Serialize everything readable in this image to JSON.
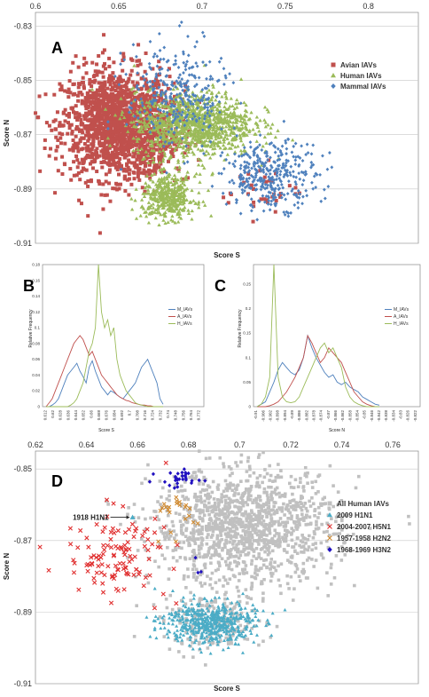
{
  "colors": {
    "avian": "#c0504d",
    "human": "#9bbb59",
    "mammal": "#4f81bd",
    "all_human": "#c0c0c0",
    "h1n1_2009": "#4bacc6",
    "h5n1": "#e03030",
    "h2n2": "#d08a30",
    "h3n2": "#2010c0"
  },
  "chart_data": [
    {
      "panel": "A",
      "type": "scatter",
      "xlabel": "Score S",
      "ylabel": "Score N",
      "xlim": [
        0.6,
        0.83
      ],
      "ylim": [
        -0.91,
        -0.825
      ],
      "xticks": [
        "0.6",
        "0.65",
        "0.7",
        "0.75",
        "0.8"
      ],
      "yticks": [
        "-0.83",
        "-0.85",
        "-0.87",
        "-0.89",
        "-0.91"
      ],
      "legend_position": "top-right",
      "grid": "horizontal",
      "series": [
        {
          "name": "Avian IAVs",
          "marker": "square",
          "color_key": "avian",
          "clusters": [
            {
              "cx": 0.648,
              "cy": -0.866,
              "sx": 0.016,
              "sy": 0.01,
              "n": 1400
            },
            {
              "cx": 0.67,
              "cy": -0.87,
              "sx": 0.01,
              "sy": 0.009,
              "n": 250
            },
            {
              "cx": 0.735,
              "cy": -0.89,
              "sx": 0.012,
              "sy": 0.005,
              "n": 35
            }
          ]
        },
        {
          "name": "Human IAVs",
          "marker": "triangle",
          "color_key": "human",
          "clusters": [
            {
              "cx": 0.695,
              "cy": -0.866,
              "sx": 0.018,
              "sy": 0.006,
              "n": 1100
            },
            {
              "cx": 0.68,
              "cy": -0.893,
              "sx": 0.008,
              "sy": 0.004,
              "n": 400
            }
          ]
        },
        {
          "name": "Mammal IAVs",
          "marker": "diamond",
          "color_key": "mammal",
          "clusters": [
            {
              "cx": 0.685,
              "cy": -0.856,
              "sx": 0.015,
              "sy": 0.01,
              "n": 300
            },
            {
              "cx": 0.742,
              "cy": -0.885,
              "sx": 0.014,
              "sy": 0.006,
              "n": 350
            }
          ]
        }
      ]
    },
    {
      "panel": "B",
      "type": "line",
      "ylabel": "Relative Frequency",
      "xlabel": "Score S",
      "ylim": [
        0,
        0.18
      ],
      "yticks": [
        "0",
        "0.02",
        "0.04",
        "0.06",
        "0.08",
        "0.1",
        "0.12",
        "0.14",
        "0.16",
        "0.18"
      ],
      "xticks": [
        "0.612",
        "0.62",
        "0.628",
        "0.636",
        "0.644",
        "0.652",
        "0.66",
        "0.668",
        "0.676",
        "0.684",
        "0.692",
        "0.7",
        "0.708",
        "0.716",
        "0.724",
        "0.732",
        "0.74",
        "0.748",
        "0.756",
        "0.764",
        "0.772"
      ],
      "legend_position": "right",
      "series": [
        {
          "name": "M_IAVs",
          "color_key": "mammal",
          "values": [
            0,
            0,
            0.002,
            0.005,
            0.01,
            0.02,
            0.03,
            0.04,
            0.045,
            0.05,
            0.055,
            0.045,
            0.038,
            0.03,
            0.05,
            0.058,
            0.045,
            0.035,
            0.025,
            0.02,
            0.015,
            0.02,
            0.018,
            0.015,
            0.012,
            0.01,
            0.015,
            0.02,
            0.025,
            0.03,
            0.04,
            0.05,
            0.055,
            0.06,
            0.05,
            0.04,
            0.03,
            0.01,
            0.003
          ]
        },
        {
          "name": "A_IAVs",
          "color_key": "avian",
          "values": [
            0,
            0.005,
            0.01,
            0.02,
            0.03,
            0.04,
            0.05,
            0.06,
            0.07,
            0.08,
            0.085,
            0.09,
            0.085,
            0.075,
            0.065,
            0.07,
            0.06,
            0.05,
            0.04,
            0.035,
            0.03,
            0.025,
            0.02,
            0.015,
            0.012,
            0.01,
            0.008,
            0.007,
            0.005,
            0.004,
            0.003,
            0.002,
            0.002,
            0.001,
            0.001,
            0,
            0,
            0,
            0
          ]
        },
        {
          "name": "H_IAVs",
          "color_key": "human",
          "values": [
            0,
            0,
            0,
            0,
            0,
            0,
            0,
            0,
            0.002,
            0.005,
            0.01,
            0.02,
            0.03,
            0.05,
            0.07,
            0.08,
            0.1,
            0.18,
            0.12,
            0.1,
            0.11,
            0.09,
            0.1,
            0.06,
            0.04,
            0.03,
            0.02,
            0.015,
            0.01,
            0.005,
            0.003,
            0.002,
            0.001,
            0,
            0,
            0,
            0,
            0,
            0
          ]
        }
      ]
    },
    {
      "panel": "C",
      "type": "line",
      "ylabel": "Relative Frequency",
      "xlabel": "Score N",
      "ylim": [
        0,
        0.29
      ],
      "yticks": [
        "0",
        "0.05",
        "0.1",
        "0.15",
        "0.2",
        "0.25"
      ],
      "xticks": [
        "-0.91",
        "-0.906",
        "-0.902",
        "-0.898",
        "-0.894",
        "-0.89",
        "-0.886",
        "-0.882",
        "-0.878",
        "-0.874",
        "-0.87",
        "-0.866",
        "-0.862",
        "-0.858",
        "-0.854",
        "-0.85",
        "-0.846",
        "-0.842",
        "-0.838",
        "-0.834",
        "-0.83",
        "-0.826",
        "-0.822"
      ],
      "legend_position": "right",
      "series": [
        {
          "name": "M_IAVs",
          "color_key": "mammal",
          "values": [
            0,
            0.005,
            0.01,
            0.03,
            0.05,
            0.075,
            0.09,
            0.08,
            0.07,
            0.065,
            0.075,
            0.1,
            0.145,
            0.12,
            0.1,
            0.085,
            0.07,
            0.06,
            0.065,
            0.05,
            0.045,
            0.05,
            0.04,
            0.035,
            0.03,
            0.02,
            0.015,
            0.01,
            0.005,
            0.003
          ]
        },
        {
          "name": "A_IAVs",
          "color_key": "avian",
          "values": [
            0,
            0,
            0,
            0.002,
            0.005,
            0.01,
            0.02,
            0.03,
            0.045,
            0.06,
            0.08,
            0.1,
            0.145,
            0.13,
            0.11,
            0.09,
            0.1,
            0.12,
            0.11,
            0.1,
            0.09,
            0.07,
            0.05,
            0.03,
            0.02,
            0.01,
            0.005,
            0.002,
            0,
            0
          ]
        },
        {
          "name": "H_IAVs",
          "color_key": "human",
          "values": [
            0,
            0.005,
            0.02,
            0.06,
            0.29,
            0.06,
            0.02,
            0.01,
            0.008,
            0.01,
            0.02,
            0.04,
            0.06,
            0.08,
            0.1,
            0.12,
            0.13,
            0.11,
            0.12,
            0.1,
            0.08,
            0.04,
            0.02,
            0.01,
            0.005,
            0.002,
            0,
            0,
            0,
            0
          ]
        }
      ]
    },
    {
      "panel": "D",
      "type": "scatter",
      "xlabel": "Score S",
      "ylabel": "Score N",
      "xlim": [
        0.62,
        0.77
      ],
      "ylim": [
        -0.91,
        -0.845
      ],
      "xticks": [
        "0.62",
        "0.64",
        "0.66",
        "0.68",
        "0.7",
        "0.72",
        "0.74",
        "0.76"
      ],
      "yticks": [
        "-0.85",
        "-0.87",
        "-0.89",
        "-0.91"
      ],
      "legend_position": "top-right",
      "grid": "horizontal",
      "annotation": {
        "text": "1918 H1N1",
        "x": 0.657,
        "y": -0.8635
      },
      "series": [
        {
          "name": "All Human IAVs",
          "marker": "square",
          "color_key": "all_human",
          "clusters": [
            {
              "cx": 0.702,
              "cy": -0.866,
              "sx": 0.018,
              "sy": 0.008,
              "n": 1300
            },
            {
              "cx": 0.69,
              "cy": -0.893,
              "sx": 0.01,
              "sy": 0.004,
              "n": 200
            }
          ]
        },
        {
          "name": "2009 H1N1",
          "marker": "triangle",
          "color_key": "h1n1_2009",
          "clusters": [
            {
              "cx": 0.688,
              "cy": -0.893,
              "sx": 0.009,
              "sy": 0.003,
              "n": 500
            }
          ]
        },
        {
          "name": "2004-2007 H5N1",
          "marker": "cross",
          "color_key": "h5n1",
          "clusters": [
            {
              "cx": 0.652,
              "cy": -0.874,
              "sx": 0.01,
              "sy": 0.006,
              "n": 120
            }
          ]
        },
        {
          "name": "1957-1958 H2N2",
          "marker": "cross",
          "color_key": "h2n2",
          "clusters": [
            {
              "cx": 0.676,
              "cy": -0.862,
              "sx": 0.006,
              "sy": 0.003,
              "n": 22
            }
          ]
        },
        {
          "name": "1968-1969 H3N2",
          "marker": "diamond",
          "color_key": "h3n2",
          "clusters": [
            {
              "cx": 0.676,
              "cy": -0.853,
              "sx": 0.004,
              "sy": 0.0015,
              "n": 30
            },
            {
              "cx": 0.685,
              "cy": -0.876,
              "sx": 0.004,
              "sy": 0.002,
              "n": 3
            }
          ]
        }
      ]
    }
  ]
}
